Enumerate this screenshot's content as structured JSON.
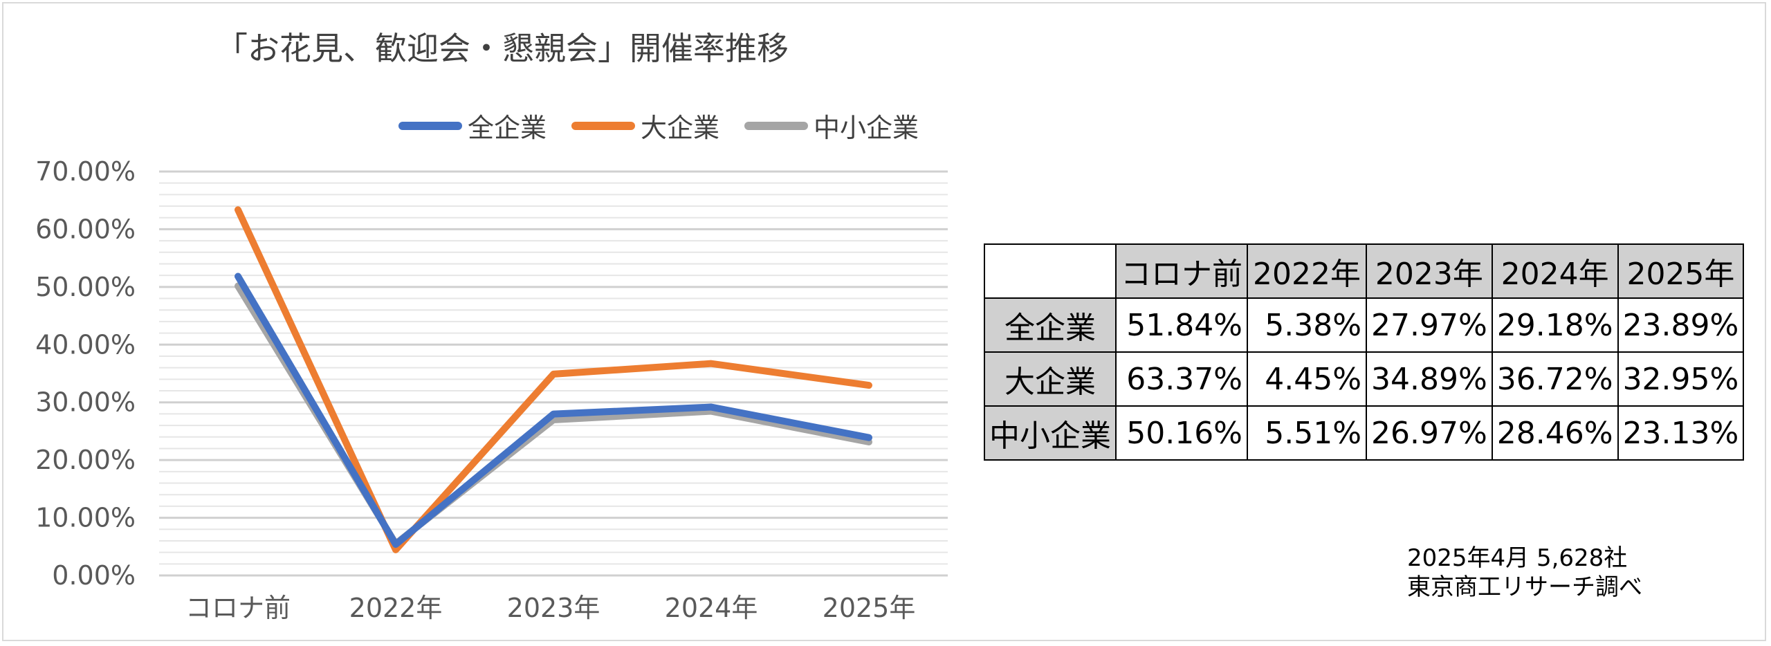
{
  "title": "「お花見、歓迎会・懇親会」開催率推移",
  "legend": [
    "全企業",
    "大企業",
    "中小企業"
  ],
  "colors": {
    "全企業": "#4472c4",
    "大企業": "#ed7d31",
    "中小企業": "#a5a5a5"
  },
  "chart_data": {
    "type": "line",
    "categories": [
      "コロナ前",
      "2022年",
      "2023年",
      "2024年",
      "2025年"
    ],
    "series": [
      {
        "name": "全企業",
        "values": [
          51.84,
          5.38,
          27.97,
          29.18,
          23.89
        ]
      },
      {
        "name": "大企業",
        "values": [
          63.37,
          4.45,
          34.89,
          36.72,
          32.95
        ]
      },
      {
        "name": "中小企業",
        "values": [
          50.16,
          5.51,
          26.97,
          28.46,
          23.13
        ]
      }
    ],
    "yticks": [
      "0.00%",
      "10.00%",
      "20.00%",
      "30.00%",
      "40.00%",
      "50.00%",
      "60.00%",
      "70.00%"
    ],
    "ylim": [
      0,
      70
    ],
    "grid": true,
    "legend_position": "top"
  },
  "table": {
    "columns": [
      "コロナ前",
      "2022年",
      "2023年",
      "2024年",
      "2025年"
    ],
    "rows": [
      {
        "label": "全企業",
        "values": [
          "51.84%",
          "5.38%",
          "27.97%",
          "29.18%",
          "23.89%"
        ]
      },
      {
        "label": "大企業",
        "values": [
          "63.37%",
          "4.45%",
          "34.89%",
          "36.72%",
          "32.95%"
        ]
      },
      {
        "label": "中小企業",
        "values": [
          "50.16%",
          "5.51%",
          "26.97%",
          "28.46%",
          "23.13%"
        ]
      }
    ]
  },
  "source": {
    "line1": "2025年4月 5,628社",
    "line2": "東京商工リサーチ調べ"
  }
}
